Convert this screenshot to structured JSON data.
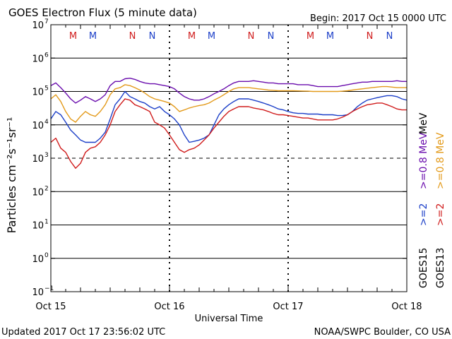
{
  "chart_data": {
    "type": "line",
    "title": "GOES Electron Flux (5 minute data)",
    "begin_label": "Begin: 2017 Oct 15 0000 UTC",
    "xlabel": "Universal Time",
    "ylabel": "Particles cm⁻²s⁻¹sr⁻¹",
    "x_ticks": [
      "Oct 15",
      "Oct 16",
      "Oct 17",
      "Oct 18"
    ],
    "x_range_hours": [
      0,
      72
    ],
    "y_scale": "log",
    "ylim": [
      0.1,
      10000000
    ],
    "y_ticks": [
      {
        "exp": -1,
        "label": "10",
        "sup": "−1"
      },
      {
        "exp": 0,
        "label": "10",
        "sup": "0"
      },
      {
        "exp": 1,
        "label": "10",
        "sup": "1"
      },
      {
        "exp": 2,
        "label": "10",
        "sup": "2"
      },
      {
        "exp": 3,
        "label": "10",
        "sup": "3"
      },
      {
        "exp": 4,
        "label": "10",
        "sup": "4"
      },
      {
        "exp": 5,
        "label": "10",
        "sup": "5"
      },
      {
        "exp": 6,
        "label": "10",
        "sup": "6"
      },
      {
        "exp": 7,
        "label": "10",
        "sup": "7"
      }
    ],
    "reference_lines": [
      {
        "exp": 3,
        "style": "dashed"
      },
      {
        "exp": 4,
        "style": "solid"
      },
      {
        "exp": 5,
        "style": "solid"
      },
      {
        "exp": 6,
        "style": "solid"
      }
    ],
    "markers": [
      {
        "label": "M",
        "hour": 4.5,
        "color": "#d01c1c"
      },
      {
        "label": "M",
        "hour": 8.5,
        "color": "#1c3fc8"
      },
      {
        "label": "N",
        "hour": 16.5,
        "color": "#d01c1c"
      },
      {
        "label": "N",
        "hour": 20.5,
        "color": "#1c3fc8"
      },
      {
        "label": "M",
        "hour": 28.5,
        "color": "#d01c1c"
      },
      {
        "label": "M",
        "hour": 32.5,
        "color": "#1c3fc8"
      },
      {
        "label": "N",
        "hour": 40.5,
        "color": "#d01c1c"
      },
      {
        "label": "N",
        "hour": 44.5,
        "color": "#1c3fc8"
      },
      {
        "label": "M",
        "hour": 52.5,
        "color": "#d01c1c"
      },
      {
        "label": "M",
        "hour": 56.5,
        "color": "#1c3fc8"
      },
      {
        "label": "N",
        "hour": 64.5,
        "color": "#d01c1c"
      },
      {
        "label": "N",
        "hour": 68.5,
        "color": "#1c3fc8"
      }
    ],
    "series": [
      {
        "satellite": "GOES15",
        "energy": ">=0.8 MeV",
        "color": "#6a0dad",
        "x": [
          0,
          1,
          2,
          3,
          4,
          5,
          6,
          7,
          8,
          9,
          10,
          11,
          12,
          13,
          14,
          15,
          16,
          17,
          18,
          19,
          20,
          21,
          22,
          23,
          24,
          25,
          26,
          27,
          28,
          29,
          30,
          31,
          32,
          33,
          34,
          35,
          36,
          37,
          38,
          39,
          40,
          41,
          42,
          43,
          44,
          45,
          46,
          47,
          48,
          49,
          50,
          51,
          52,
          53,
          54,
          55,
          56,
          57,
          58,
          59,
          60,
          61,
          62,
          63,
          64,
          65,
          66,
          67,
          68,
          69,
          70,
          71,
          72
        ],
        "values": [
          150000,
          180000,
          130000,
          90000,
          60000,
          45000,
          55000,
          70000,
          60000,
          50000,
          60000,
          80000,
          150000,
          200000,
          200000,
          240000,
          250000,
          230000,
          200000,
          180000,
          170000,
          170000,
          160000,
          150000,
          140000,
          120000,
          90000,
          70000,
          60000,
          55000,
          55000,
          60000,
          70000,
          85000,
          100000,
          120000,
          150000,
          180000,
          200000,
          200000,
          200000,
          210000,
          200000,
          190000,
          180000,
          180000,
          170000,
          170000,
          170000,
          170000,
          160000,
          160000,
          160000,
          150000,
          140000,
          140000,
          140000,
          140000,
          140000,
          150000,
          160000,
          170000,
          180000,
          190000,
          190000,
          200000,
          200000,
          200000,
          200000,
          200000,
          210000,
          200000,
          200000
        ]
      },
      {
        "satellite": "GOES13",
        "energy": ">=0.8 MeV",
        "color": "#e39a1a",
        "x": [
          0,
          1,
          2,
          3,
          4,
          5,
          6,
          7,
          8,
          9,
          10,
          11,
          12,
          13,
          14,
          15,
          16,
          17,
          18,
          19,
          20,
          21,
          22,
          23,
          24,
          25,
          26,
          27,
          28,
          29,
          30,
          31,
          32,
          33,
          34,
          35,
          36,
          37,
          38,
          39,
          40,
          41,
          42,
          43,
          44,
          45,
          46,
          47,
          48,
          49,
          50,
          51,
          52,
          53,
          54,
          55,
          56,
          57,
          58,
          59,
          60,
          61,
          62,
          63,
          64,
          65,
          66,
          67,
          68,
          69,
          70,
          71,
          72
        ],
        "values": [
          60000,
          80000,
          50000,
          25000,
          15000,
          12000,
          18000,
          25000,
          20000,
          18000,
          25000,
          40000,
          80000,
          120000,
          130000,
          160000,
          150000,
          130000,
          110000,
          90000,
          70000,
          60000,
          55000,
          50000,
          45000,
          35000,
          25000,
          28000,
          32000,
          35000,
          38000,
          40000,
          45000,
          55000,
          65000,
          80000,
          100000,
          120000,
          130000,
          130000,
          130000,
          125000,
          120000,
          115000,
          110000,
          108000,
          105000,
          105000,
          105000,
          105000,
          104000,
          103000,
          102000,
          100000,
          100000,
          100000,
          100000,
          100000,
          100000,
          102000,
          105000,
          110000,
          115000,
          120000,
          125000,
          130000,
          135000,
          140000,
          140000,
          135000,
          130000,
          130000,
          130000
        ]
      },
      {
        "satellite": "GOES15",
        "energy": ">=2 MeV",
        "color": "#1c3fc8",
        "x": [
          0,
          1,
          2,
          3,
          4,
          5,
          6,
          7,
          8,
          9,
          10,
          11,
          12,
          13,
          14,
          15,
          16,
          17,
          18,
          19,
          20,
          21,
          22,
          23,
          24,
          25,
          26,
          27,
          28,
          29,
          30,
          31,
          32,
          33,
          34,
          35,
          36,
          37,
          38,
          39,
          40,
          41,
          42,
          43,
          44,
          45,
          46,
          47,
          48,
          49,
          50,
          51,
          52,
          53,
          54,
          55,
          56,
          57,
          58,
          59,
          60,
          61,
          62,
          63,
          64,
          65,
          66,
          67,
          68,
          69,
          70,
          71,
          72
        ],
        "values": [
          15000,
          25000,
          20000,
          12000,
          7000,
          5000,
          3500,
          3000,
          3000,
          3000,
          4000,
          6000,
          15000,
          40000,
          60000,
          100000,
          70000,
          60000,
          50000,
          45000,
          35000,
          30000,
          35000,
          25000,
          20000,
          15000,
          10000,
          5000,
          3000,
          3200,
          3500,
          4000,
          5000,
          10000,
          20000,
          30000,
          40000,
          50000,
          60000,
          60000,
          60000,
          55000,
          50000,
          45000,
          40000,
          35000,
          30000,
          28000,
          25000,
          23000,
          22000,
          22000,
          21000,
          21000,
          21000,
          20000,
          20000,
          20000,
          19000,
          19000,
          20000,
          25000,
          35000,
          45000,
          55000,
          60000,
          65000,
          70000,
          75000,
          75000,
          70000,
          60000,
          55000
        ]
      },
      {
        "satellite": "GOES13",
        "energy": ">=2 MeV",
        "color": "#d01c1c",
        "x": [
          0,
          1,
          2,
          3,
          4,
          5,
          6,
          7,
          8,
          9,
          10,
          11,
          12,
          13,
          14,
          15,
          16,
          17,
          18,
          19,
          20,
          21,
          22,
          23,
          24,
          25,
          26,
          27,
          28,
          29,
          30,
          31,
          32,
          33,
          34,
          35,
          36,
          37,
          38,
          39,
          40,
          41,
          42,
          43,
          44,
          45,
          46,
          47,
          48,
          49,
          50,
          51,
          52,
          53,
          54,
          55,
          56,
          57,
          58,
          59,
          60,
          61,
          62,
          63,
          64,
          65,
          66,
          67,
          68,
          69,
          70,
          71,
          72
        ],
        "values": [
          3000,
          4000,
          2000,
          1500,
          800,
          500,
          700,
          1500,
          2000,
          2200,
          3000,
          5000,
          10000,
          25000,
          40000,
          60000,
          55000,
          40000,
          35000,
          30000,
          25000,
          12000,
          10000,
          8000,
          5000,
          3000,
          1800,
          1500,
          1800,
          2000,
          2500,
          3500,
          5000,
          8000,
          12000,
          18000,
          25000,
          30000,
          35000,
          35000,
          35000,
          32000,
          30000,
          28000,
          25000,
          22000,
          20000,
          20000,
          19000,
          18000,
          17000,
          16000,
          16000,
          15000,
          14000,
          14000,
          14000,
          14000,
          15000,
          17000,
          20000,
          25000,
          30000,
          35000,
          40000,
          42000,
          45000,
          45000,
          40000,
          35000,
          30000,
          28000,
          28000
        ]
      }
    ]
  },
  "legend": {
    "goes15": "GOES15",
    "goes13": "GOES13",
    "purple_label": ">=0.8 MeV",
    "orange_label": ">=0.8 MeV",
    "blue_label": ">=2",
    "red_label": ">=2",
    "mev_label": "MeV"
  },
  "footer": {
    "updated": "Updated 2017 Oct 17 23:56:02 UTC",
    "credit": "NOAA/SWPC Boulder, CO USA"
  },
  "colors": {
    "goes15_08": "#6a0dad",
    "goes13_08": "#e39a1a",
    "goes15_2": "#1c3fc8",
    "goes13_2": "#d01c1c"
  }
}
